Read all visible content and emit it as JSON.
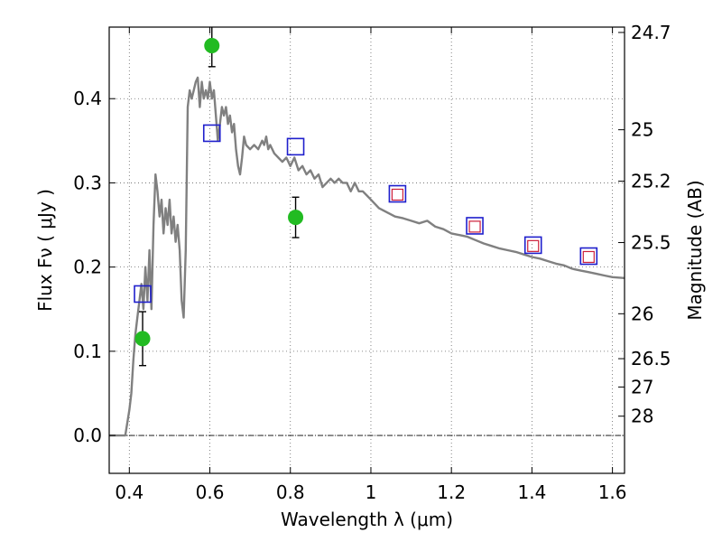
{
  "chart_data": {
    "type": "scatter",
    "title": "",
    "xlabel": "Wavelength  λ (μm)",
    "ylabel": "Flux  Fν  ( μJy )",
    "y2label": "Magnitude (AB)",
    "xlim": [
      0.35,
      1.63
    ],
    "ylim": [
      -0.045,
      0.485
    ],
    "grid": true,
    "x_ticks": [
      {
        "value": 0.4,
        "label": "0.4"
      },
      {
        "value": 0.6,
        "label": "0.6"
      },
      {
        "value": 0.8,
        "label": "0.8"
      },
      {
        "value": 1.0,
        "label": "1"
      },
      {
        "value": 1.2,
        "label": "1.2"
      },
      {
        "value": 1.4,
        "label": "1.4"
      },
      {
        "value": 1.6,
        "label": "1.6"
      }
    ],
    "y_ticks": [
      {
        "value": 0.0,
        "label": "0.0"
      },
      {
        "value": 0.1,
        "label": "0.1"
      },
      {
        "value": 0.2,
        "label": "0.2"
      },
      {
        "value": 0.3,
        "label": "0.3"
      },
      {
        "value": 0.4,
        "label": "0.4"
      }
    ],
    "y2_ticks": [
      {
        "value": 24.7,
        "label": "24.7"
      },
      {
        "value": 25.0,
        "label": "25"
      },
      {
        "value": 25.2,
        "label": "25.2"
      },
      {
        "value": 25.5,
        "label": "25.5"
      },
      {
        "value": 26.0,
        "label": "26"
      },
      {
        "value": 26.5,
        "label": "26.5"
      },
      {
        "value": 27.0,
        "label": "27"
      },
      {
        "value": 28.0,
        "label": "28"
      }
    ],
    "zero_line": 0.0,
    "series": [
      {
        "type": "line",
        "color": "#808080",
        "points": [
          [
            0.35,
            0.0
          ],
          [
            0.39,
            0.0
          ],
          [
            0.4,
            0.03
          ],
          [
            0.405,
            0.05
          ],
          [
            0.41,
            0.09
          ],
          [
            0.415,
            0.12
          ],
          [
            0.42,
            0.14
          ],
          [
            0.425,
            0.16
          ],
          [
            0.43,
            0.18
          ],
          [
            0.435,
            0.15
          ],
          [
            0.44,
            0.2
          ],
          [
            0.445,
            0.16
          ],
          [
            0.45,
            0.22
          ],
          [
            0.455,
            0.15
          ],
          [
            0.46,
            0.25
          ],
          [
            0.465,
            0.31
          ],
          [
            0.47,
            0.29
          ],
          [
            0.475,
            0.26
          ],
          [
            0.48,
            0.28
          ],
          [
            0.485,
            0.24
          ],
          [
            0.49,
            0.27
          ],
          [
            0.495,
            0.25
          ],
          [
            0.5,
            0.28
          ],
          [
            0.505,
            0.24
          ],
          [
            0.51,
            0.26
          ],
          [
            0.515,
            0.23
          ],
          [
            0.52,
            0.25
          ],
          [
            0.525,
            0.22
          ],
          [
            0.53,
            0.16
          ],
          [
            0.535,
            0.14
          ],
          [
            0.54,
            0.22
          ],
          [
            0.545,
            0.39
          ],
          [
            0.55,
            0.41
          ],
          [
            0.555,
            0.4
          ],
          [
            0.56,
            0.41
          ],
          [
            0.565,
            0.42
          ],
          [
            0.57,
            0.425
          ],
          [
            0.575,
            0.39
          ],
          [
            0.58,
            0.42
          ],
          [
            0.585,
            0.4
          ],
          [
            0.59,
            0.41
          ],
          [
            0.595,
            0.4
          ],
          [
            0.6,
            0.42
          ],
          [
            0.605,
            0.4
          ],
          [
            0.61,
            0.41
          ],
          [
            0.615,
            0.38
          ],
          [
            0.62,
            0.35
          ],
          [
            0.625,
            0.37
          ],
          [
            0.63,
            0.39
          ],
          [
            0.635,
            0.38
          ],
          [
            0.64,
            0.39
          ],
          [
            0.645,
            0.37
          ],
          [
            0.65,
            0.38
          ],
          [
            0.655,
            0.36
          ],
          [
            0.66,
            0.37
          ],
          [
            0.665,
            0.34
          ],
          [
            0.67,
            0.32
          ],
          [
            0.675,
            0.31
          ],
          [
            0.68,
            0.33
          ],
          [
            0.685,
            0.355
          ],
          [
            0.69,
            0.345
          ],
          [
            0.7,
            0.34
          ],
          [
            0.71,
            0.345
          ],
          [
            0.72,
            0.34
          ],
          [
            0.73,
            0.35
          ],
          [
            0.735,
            0.345
          ],
          [
            0.74,
            0.355
          ],
          [
            0.745,
            0.34
          ],
          [
            0.75,
            0.345
          ],
          [
            0.76,
            0.335
          ],
          [
            0.77,
            0.33
          ],
          [
            0.78,
            0.325
          ],
          [
            0.79,
            0.33
          ],
          [
            0.8,
            0.32
          ],
          [
            0.81,
            0.33
          ],
          [
            0.82,
            0.315
          ],
          [
            0.83,
            0.32
          ],
          [
            0.84,
            0.31
          ],
          [
            0.85,
            0.315
          ],
          [
            0.86,
            0.305
          ],
          [
            0.87,
            0.31
          ],
          [
            0.88,
            0.295
          ],
          [
            0.89,
            0.3
          ],
          [
            0.9,
            0.305
          ],
          [
            0.91,
            0.3
          ],
          [
            0.92,
            0.305
          ],
          [
            0.93,
            0.3
          ],
          [
            0.94,
            0.3
          ],
          [
            0.95,
            0.29
          ],
          [
            0.96,
            0.3
          ],
          [
            0.97,
            0.29
          ],
          [
            0.98,
            0.29
          ],
          [
            0.99,
            0.285
          ],
          [
            1.0,
            0.28
          ],
          [
            1.02,
            0.27
          ],
          [
            1.04,
            0.265
          ],
          [
            1.06,
            0.26
          ],
          [
            1.08,
            0.258
          ],
          [
            1.1,
            0.255
          ],
          [
            1.12,
            0.252
          ],
          [
            1.14,
            0.255
          ],
          [
            1.16,
            0.248
          ],
          [
            1.18,
            0.245
          ],
          [
            1.2,
            0.24
          ],
          [
            1.22,
            0.238
          ],
          [
            1.24,
            0.236
          ],
          [
            1.26,
            0.232
          ],
          [
            1.28,
            0.228
          ],
          [
            1.3,
            0.225
          ],
          [
            1.32,
            0.222
          ],
          [
            1.34,
            0.22
          ],
          [
            1.36,
            0.218
          ],
          [
            1.38,
            0.215
          ],
          [
            1.4,
            0.212
          ],
          [
            1.42,
            0.21
          ],
          [
            1.44,
            0.207
          ],
          [
            1.46,
            0.204
          ],
          [
            1.48,
            0.202
          ],
          [
            1.5,
            0.198
          ],
          [
            1.52,
            0.196
          ],
          [
            1.54,
            0.194
          ],
          [
            1.56,
            0.192
          ],
          [
            1.58,
            0.19
          ],
          [
            1.6,
            0.188
          ],
          [
            1.63,
            0.187
          ]
        ]
      },
      {
        "type": "scatter",
        "marker": "square-open",
        "color": "#1f1fcc",
        "points": [
          [
            0.433,
            0.168
          ],
          [
            0.605,
            0.359
          ],
          [
            0.813,
            0.343
          ],
          [
            1.066,
            0.287
          ],
          [
            1.258,
            0.249
          ],
          [
            1.403,
            0.226
          ],
          [
            1.541,
            0.213
          ]
        ]
      },
      {
        "type": "scatter",
        "marker": "square-open",
        "color": "#cc1f3a",
        "points": [
          [
            1.066,
            0.286
          ],
          [
            1.258,
            0.248
          ],
          [
            1.403,
            0.225
          ],
          [
            1.541,
            0.212
          ]
        ]
      },
      {
        "type": "scatter",
        "marker": "circle",
        "color": "#22bb22",
        "points": [
          {
            "x": 0.433,
            "y": 0.115,
            "yerr": 0.032
          },
          {
            "x": 0.605,
            "y": 0.463,
            "yerr": 0.025
          },
          {
            "x": 0.813,
            "y": 0.259,
            "yerr": 0.024
          }
        ]
      }
    ]
  }
}
